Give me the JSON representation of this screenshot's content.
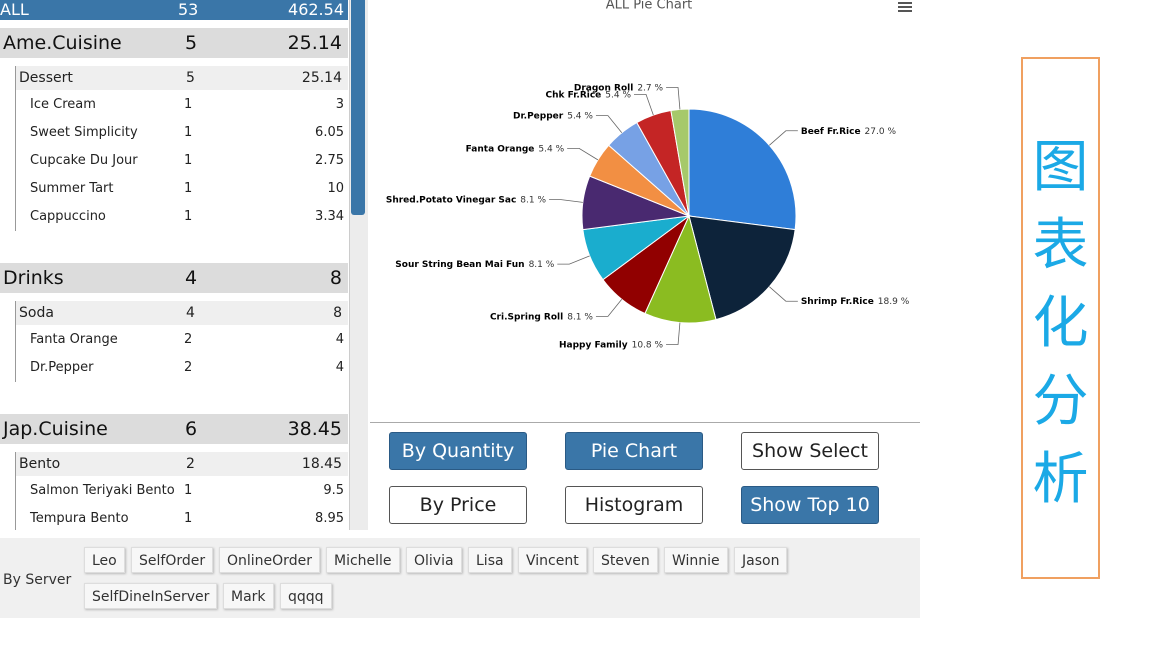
{
  "table": {
    "header": [
      "ALL",
      "53",
      "462.54"
    ],
    "groups": [
      {
        "name": "Ame.Cuisine",
        "qty": "5",
        "price": "25.14",
        "subgroups": [
          {
            "name": "Dessert",
            "qty": "5",
            "price": "25.14",
            "items": [
              [
                "Ice Cream",
                "1",
                "3"
              ],
              [
                "Sweet Simplicity",
                "1",
                "6.05"
              ],
              [
                "Cupcake Du Jour",
                "1",
                "2.75"
              ],
              [
                "Summer Tart",
                "1",
                "10"
              ],
              [
                "Cappuccino",
                "1",
                "3.34"
              ]
            ]
          }
        ]
      },
      {
        "name": "Drinks",
        "qty": "4",
        "price": "8",
        "subgroups": [
          {
            "name": "Soda",
            "qty": "4",
            "price": "8",
            "items": [
              [
                "Fanta Orange",
                "2",
                "4"
              ],
              [
                "Dr.Pepper",
                "2",
                "4"
              ]
            ]
          }
        ]
      },
      {
        "name": "Jap.Cuisine",
        "qty": "6",
        "price": "38.45",
        "subgroups": [
          {
            "name": "Bento",
            "qty": "2",
            "price": "18.45",
            "items": [
              [
                "Salmon Teriyaki Bento",
                "1",
                "9.5"
              ],
              [
                "Tempura Bento",
                "1",
                "8.95"
              ]
            ]
          }
        ]
      }
    ]
  },
  "chart_data": {
    "type": "pie",
    "title": "ALL Pie Chart",
    "categories": [
      "Beef Fr.Rice",
      "Shrimp Fr.Rice",
      "Happy Family",
      "Cri.Spring Roll",
      "Sour String Bean Mai Fun",
      "Shred.Potato Vinegar Sac",
      "Fanta Orange",
      "Dr.Pepper",
      "Chk Fr.Rice",
      "Dragon Roll"
    ],
    "values": [
      27.0,
      18.9,
      10.8,
      8.1,
      8.1,
      8.1,
      5.4,
      5.4,
      5.4,
      2.7
    ],
    "value_labels": [
      "27.0 %",
      "18.9 %",
      "10.8 %",
      "8.1 %",
      "8.1 %",
      "8.1 %",
      "5.4 %",
      "5.4 %",
      "5.4 %",
      "2.7 %"
    ],
    "colors": [
      "#2f7ed8",
      "#0d233a",
      "#8bbc21",
      "#910000",
      "#1aadce",
      "#492970",
      "#f28f43",
      "#77a1e5",
      "#c42525",
      "#a6c96a"
    ]
  },
  "buttons": [
    {
      "label": "By Quantity",
      "active": true
    },
    {
      "label": "Pie Chart",
      "active": true
    },
    {
      "label": "Show Select",
      "active": false
    },
    {
      "label": "By Price",
      "active": false
    },
    {
      "label": "Histogram",
      "active": false
    },
    {
      "label": "Show Top 10",
      "active": true
    }
  ],
  "server_filter": {
    "label": "By Server",
    "servers": [
      "Leo",
      "SelfOrder",
      "OnlineOrder",
      "Michelle",
      "Olivia",
      "Lisa",
      "Vincent",
      "Steven",
      "Winnie",
      "Jason",
      "SelfDineInServer",
      "Mark",
      "qqqq"
    ]
  },
  "side_title": "图表化分析"
}
